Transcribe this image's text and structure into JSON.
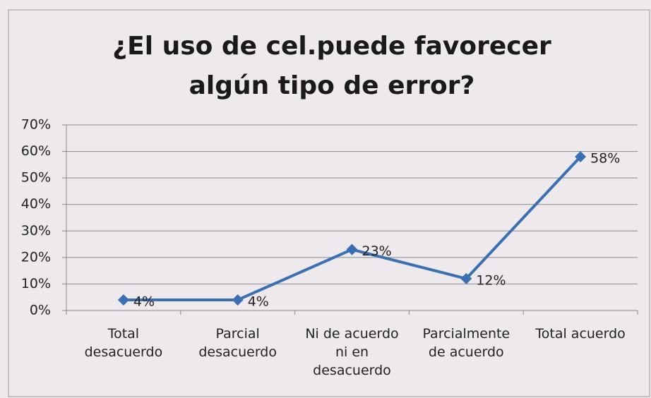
{
  "chart_data": {
    "type": "line",
    "title": "¿El uso de cel.puede favorecer algún tipo de error?",
    "categories": [
      "Total desacuerdo",
      "Parcial desacuerdo",
      "Ni de acuerdo ni en desacuerdo",
      "Parcialmente de acuerdo",
      "Total acuerdo"
    ],
    "values": [
      4,
      4,
      23,
      12,
      58
    ],
    "value_labels": [
      "4%",
      "4%",
      "23%",
      "12%",
      "58%"
    ],
    "color": "#3a70b2",
    "ylim": [
      0,
      70
    ],
    "yticks": [
      {
        "value": 0,
        "label": "0%"
      },
      {
        "value": 10,
        "label": "10%"
      },
      {
        "value": 20,
        "label": "20%"
      },
      {
        "value": 30,
        "label": "30%"
      },
      {
        "value": 40,
        "label": "40%"
      },
      {
        "value": 50,
        "label": "50%"
      },
      {
        "value": 60,
        "label": "60%"
      },
      {
        "value": 70,
        "label": "70%"
      }
    ],
    "grid": true
  }
}
